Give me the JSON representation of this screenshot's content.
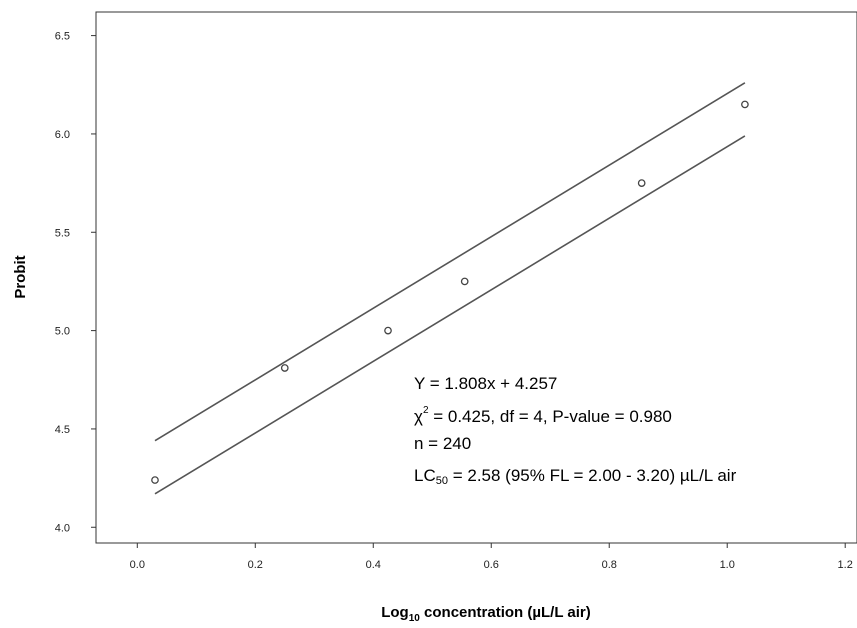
{
  "chart_data": {
    "type": "scatter",
    "title": "",
    "xlabel_parts": [
      "Log",
      "10",
      " concentration (µL/L air)"
    ],
    "ylabel": "Probit",
    "xlim": [
      -0.07,
      1.22
    ],
    "ylim": [
      3.92,
      6.62
    ],
    "x_ticks": [
      "0.0",
      "0.2",
      "0.4",
      "0.6",
      "0.8",
      "1.0",
      "1.2"
    ],
    "y_ticks": [
      "4.0",
      "4.5",
      "5.0",
      "5.5",
      "6.0",
      "6.5"
    ],
    "points": [
      {
        "x": 0.03,
        "y": 4.24
      },
      {
        "x": 0.25,
        "y": 4.81
      },
      {
        "x": 0.425,
        "y": 5.0
      },
      {
        "x": 0.555,
        "y": 5.25
      },
      {
        "x": 0.855,
        "y": 5.75
      },
      {
        "x": 1.03,
        "y": 6.15
      }
    ],
    "upper_line": [
      {
        "x": 0.03,
        "y": 4.44
      },
      {
        "x": 1.03,
        "y": 6.26
      }
    ],
    "lower_line": [
      {
        "x": 0.03,
        "y": 4.17
      },
      {
        "x": 1.03,
        "y": 5.99
      }
    ],
    "grid": false,
    "line_color": "#555555",
    "point_color": "#444444"
  },
  "annotation": {
    "equation": "Y = 1.808x + 4.257",
    "chi_symbol": "χ",
    "chi_exp": "2",
    "chi_rest": " = 0.425,  df = 4,  P-value = 0.980",
    "n_line": "n = 240",
    "lc_prefix": "LC",
    "lc_sub": "50",
    "lc_rest": " = 2.58 (95% FL = 2.00 - 3.20) µL/L air"
  }
}
